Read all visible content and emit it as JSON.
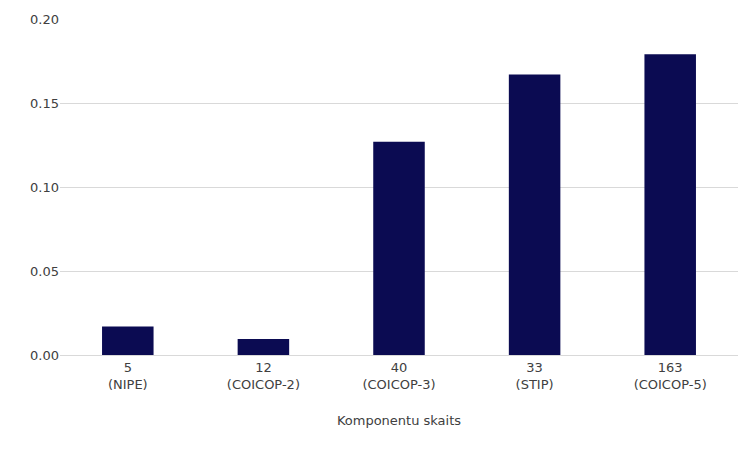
{
  "chart_data": {
    "type": "bar",
    "x_label": "Komponentu skaits",
    "categories": [
      "5\n(NIPE)",
      "12\n(COICOP-2)",
      "40\n(COICOP-3)",
      "33\n(STIP)",
      "163\n(COICOP-5)"
    ],
    "values": [
      0.017,
      0.0095,
      0.127,
      0.167,
      0.179
    ],
    "color": "#0b0b52",
    "ylim": [
      0,
      0.2
    ],
    "yticks": [
      {
        "value": 0,
        "label": "0.00"
      },
      {
        "value": 0.05,
        "label": "0.05"
      },
      {
        "value": 0.1,
        "label": "0.10"
      },
      {
        "value": 0.15,
        "label": "0.15"
      },
      {
        "value": 0.2,
        "label": "0.20"
      }
    ],
    "grid": true
  }
}
